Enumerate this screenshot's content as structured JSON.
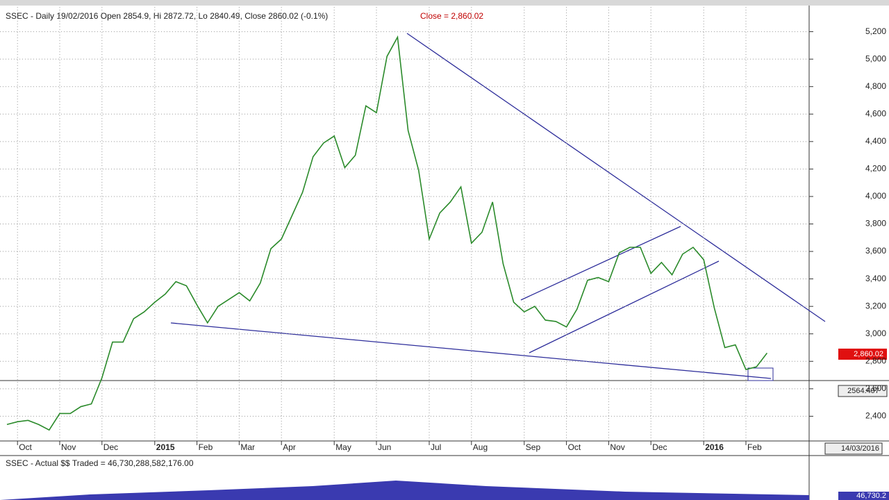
{
  "chart_data": {
    "type": "line",
    "title": "SSEC - Daily 19/02/2016 Open 2854.9, Hi 2872.72, Lo 2840.49, Close 2860.02 (-0.1%)",
    "subtitle": "Close = 2,860.02",
    "categories": [
      null,
      "Oct",
      null,
      null,
      null,
      "Nov",
      null,
      null,
      null,
      "Dec",
      null,
      null,
      null,
      null,
      "2015",
      null,
      null,
      null,
      "Feb",
      null,
      null,
      null,
      "Mar",
      null,
      null,
      null,
      "Apr",
      null,
      null,
      null,
      null,
      "May",
      null,
      null,
      null,
      "Jun",
      null,
      null,
      null,
      null,
      "Jul",
      null,
      null,
      null,
      "Aug",
      null,
      null,
      null,
      null,
      "Sep",
      null,
      null,
      null,
      "Oct",
      null,
      null,
      null,
      "Nov",
      null,
      null,
      null,
      "Dec",
      null,
      null,
      null,
      null,
      "2016",
      null,
      null,
      null,
      "Feb",
      null,
      null
    ],
    "values": [
      2340,
      2360,
      2370,
      2340,
      2300,
      2420,
      2420,
      2470,
      2490,
      2680,
      2940,
      2940,
      3110,
      3160,
      3230,
      3290,
      3380,
      3350,
      3210,
      3080,
      3200,
      3250,
      3300,
      3240,
      3370,
      3620,
      3690,
      3860,
      4030,
      4290,
      4390,
      4440,
      4210,
      4300,
      4660,
      4610,
      5020,
      5160,
      4480,
      4190,
      3690,
      3880,
      3960,
      4070,
      3660,
      3740,
      3960,
      3510,
      3230,
      3160,
      3200,
      3100,
      3090,
      3050,
      3180,
      3390,
      3410,
      3380,
      3590,
      3630,
      3630,
      3440,
      3520,
      3430,
      3580,
      3630,
      3540,
      3190,
      2900,
      2920,
      2740,
      2760,
      2860
    ],
    "color": "#2a8a2a",
    "ylim": [
      2220,
      5380
    ],
    "yticks": [
      {
        "value": 2400,
        "label": "2,400"
      },
      {
        "value": 2600,
        "label": "2,600"
      },
      {
        "value": 2800,
        "label": "2,800"
      },
      {
        "value": 3000,
        "label": "3,000"
      },
      {
        "value": 3200,
        "label": "3,200"
      },
      {
        "value": 3400,
        "label": "3,400"
      },
      {
        "value": 3600,
        "label": "3,600"
      },
      {
        "value": 3800,
        "label": "3,800"
      },
      {
        "value": 4000,
        "label": "4,000"
      },
      {
        "value": 4200,
        "label": "4,200"
      },
      {
        "value": 4400,
        "label": "4,400"
      },
      {
        "value": 4600,
        "label": "4,600"
      },
      {
        "value": 4800,
        "label": "4,800"
      },
      {
        "value": 5000,
        "label": "5,000"
      },
      {
        "value": 5200,
        "label": "5,200"
      }
    ],
    "grid": true,
    "last_price_label": "2,860.02",
    "cursor_price_label": "2564.497",
    "cursor_date_label": "14/03/2016",
    "volume_title": "SSEC - Actual $$ Traded = 46,730,288,582,176.00",
    "volume_axis_label": "46,730.2"
  }
}
